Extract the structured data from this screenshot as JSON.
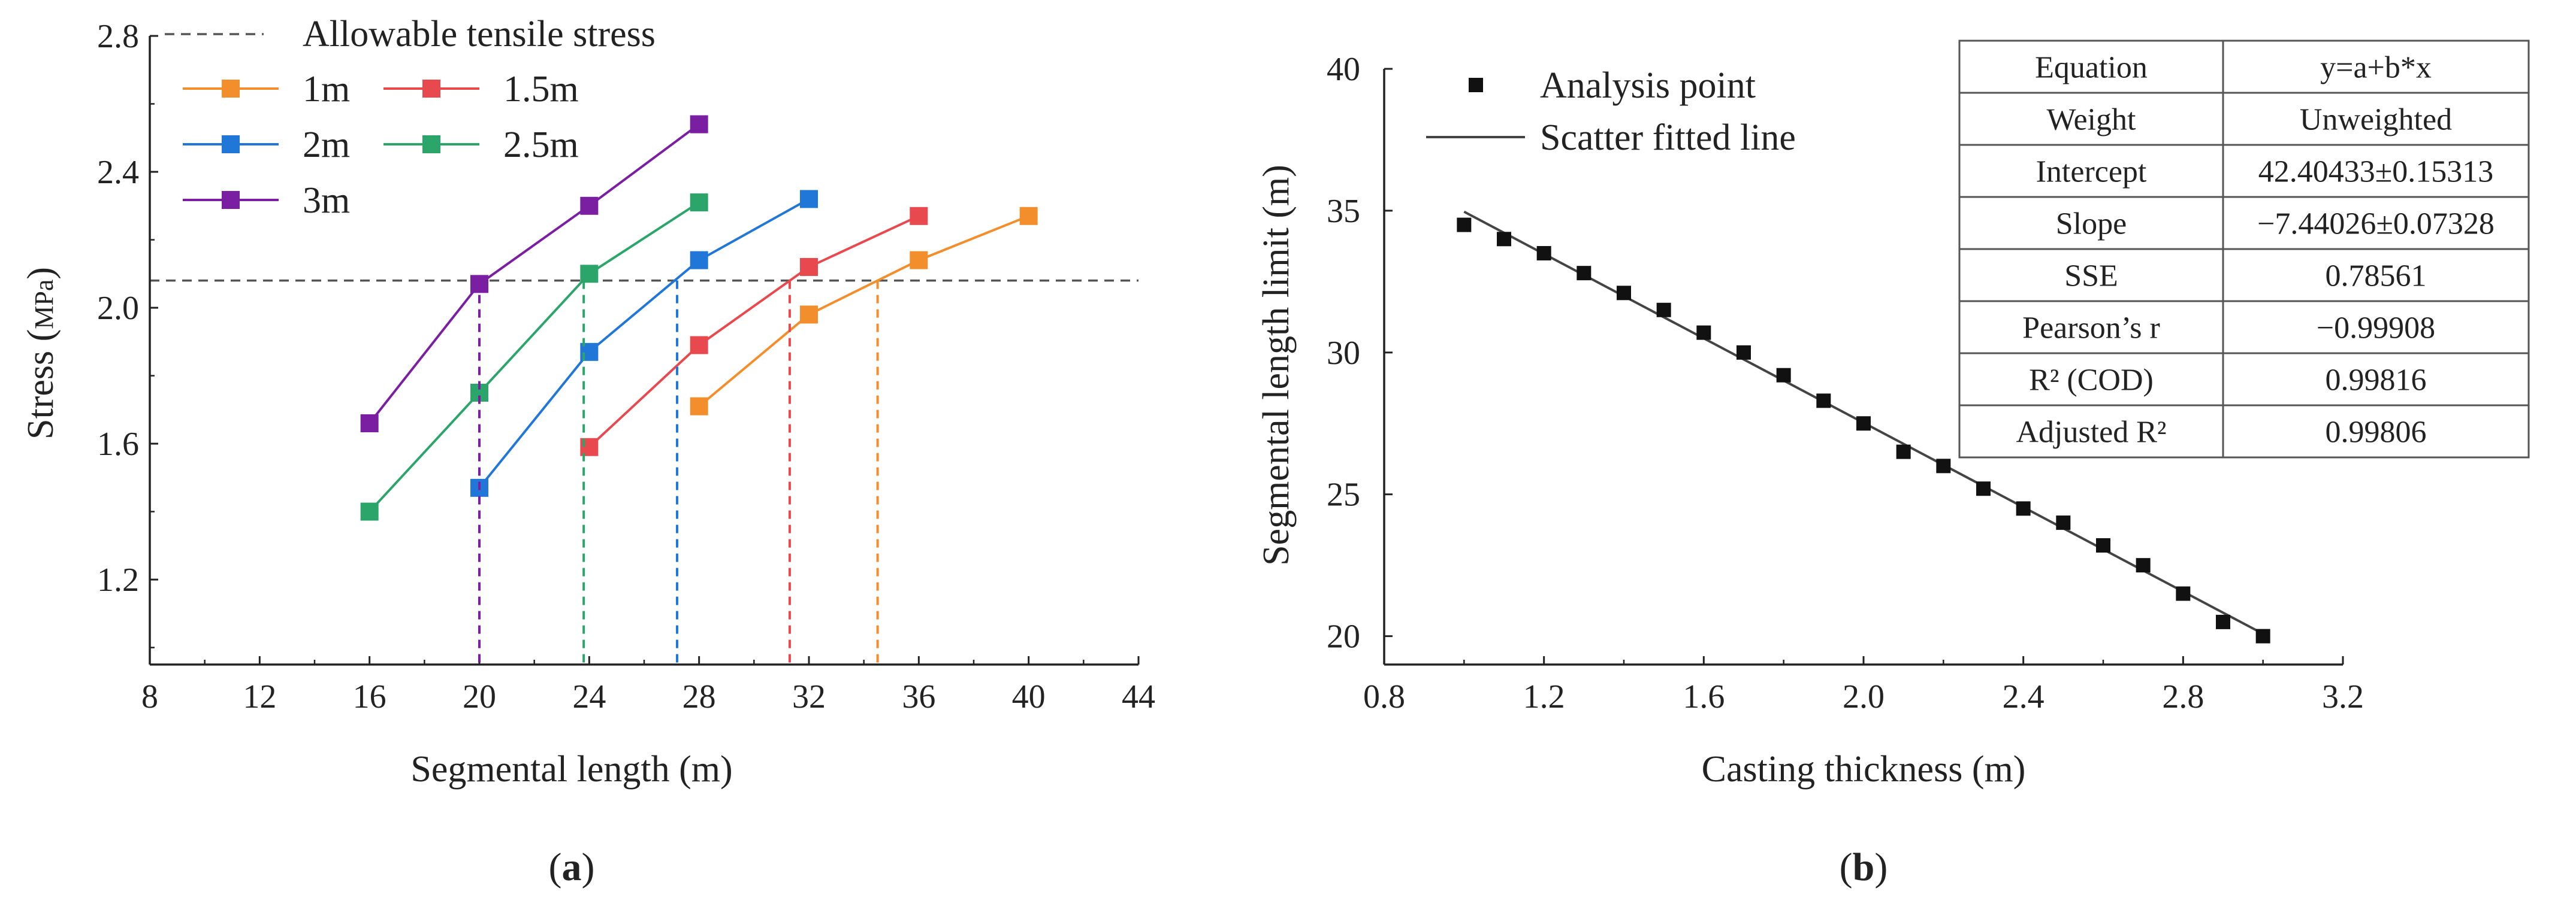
{
  "colors": {
    "axis": "#222222",
    "threshold": "#555555",
    "fit_line": "#444444",
    "point": "#111111",
    "table_border": "#555555"
  },
  "panels": {
    "a_label": "(a)",
    "b_label": "(b)"
  },
  "chart_data": [
    {
      "id": "a",
      "type": "line",
      "xlabel": "Segmental length (m)",
      "ylabel_main": "Stress (",
      "ylabel_unit": "MPa",
      "ylabel_close": ")",
      "xlim": [
        8,
        44
      ],
      "ylim": [
        0.95,
        2.8
      ],
      "xticks": [
        8,
        12,
        16,
        20,
        24,
        28,
        32,
        36,
        40,
        44
      ],
      "yticks": [
        1.2,
        1.6,
        2.0,
        2.4,
        2.8
      ],
      "xtick_labels": [
        "8",
        "12",
        "16",
        "20",
        "24",
        "28",
        "32",
        "36",
        "40",
        "44"
      ],
      "ytick_labels": [
        "1.2",
        "1.6",
        "2.0",
        "2.4",
        "2.8"
      ],
      "threshold": {
        "label": "Allowable tensile stress",
        "value": 2.08
      },
      "series": [
        {
          "name": "1m",
          "color": "#f28e2b",
          "x": [
            28,
            32,
            36,
            40
          ],
          "y": [
            1.71,
            1.98,
            2.14,
            2.27
          ],
          "intersect": 34.5
        },
        {
          "name": "1.5m",
          "color": "#e8494e",
          "x": [
            24,
            28,
            32,
            36
          ],
          "y": [
            1.59,
            1.89,
            2.12,
            2.27
          ],
          "intersect": 31.3
        },
        {
          "name": "2m",
          "color": "#2077d8",
          "x": [
            20,
            24,
            28,
            32
          ],
          "y": [
            1.47,
            1.87,
            2.14,
            2.32
          ],
          "intersect": 27.2
        },
        {
          "name": "2.5m",
          "color": "#2ca56a",
          "x": [
            16,
            20,
            24,
            28
          ],
          "y": [
            1.4,
            1.75,
            2.1,
            2.31
          ],
          "intersect": 23.8
        },
        {
          "name": "3m",
          "color": "#7b1fa2",
          "x": [
            16,
            20,
            24,
            28
          ],
          "y": [
            1.66,
            2.07,
            2.3,
            2.54
          ],
          "intersect": 20.0
        }
      ]
    },
    {
      "id": "b",
      "type": "scatter",
      "xlabel": "Casting thickness (m)",
      "ylabel": "Segmental  length limit (m)",
      "xlim": [
        0.8,
        3.2
      ],
      "ylim": [
        19,
        40
      ],
      "xticks": [
        0.8,
        1.2,
        1.6,
        2.0,
        2.4,
        2.8,
        3.2
      ],
      "yticks": [
        20,
        25,
        30,
        35,
        40
      ],
      "xtick_labels": [
        "0.8",
        "1.2",
        "1.6",
        "2.0",
        "2.4",
        "2.8",
        "3.2"
      ],
      "ytick_labels": [
        "20",
        "25",
        "30",
        "35",
        "40"
      ],
      "legend": {
        "points": "Analysis point",
        "line": "Scatter fitted line"
      },
      "points": {
        "x": [
          1.0,
          1.1,
          1.2,
          1.3,
          1.4,
          1.5,
          1.6,
          1.7,
          1.8,
          1.9,
          2.0,
          2.1,
          2.2,
          2.3,
          2.4,
          2.5,
          2.6,
          2.7,
          2.8,
          2.9,
          3.0
        ],
        "y": [
          34.5,
          34.0,
          33.5,
          32.8,
          32.1,
          31.5,
          30.7,
          30.0,
          29.2,
          28.3,
          27.5,
          26.5,
          26.0,
          25.2,
          24.5,
          24.0,
          23.2,
          22.5,
          21.5,
          20.5,
          20.0
        ]
      },
      "fit": {
        "intercept": 42.40433,
        "slope": -7.44026,
        "x_range": [
          1.0,
          3.0
        ]
      },
      "table": [
        {
          "key": "Equation",
          "value": "y=a+b*x"
        },
        {
          "key": "Weight",
          "value": "Unweighted"
        },
        {
          "key": "Intercept",
          "value": "42.40433±0.15313"
        },
        {
          "key": "Slope",
          "value": "−7.44026±0.07328"
        },
        {
          "key": "SSE",
          "value": "0.78561"
        },
        {
          "key": "Pearson’s r",
          "value": "−0.99908"
        },
        {
          "key": "R² (COD)",
          "value": "0.99816"
        },
        {
          "key": "Adjusted R²",
          "value": "0.99806"
        }
      ]
    }
  ]
}
